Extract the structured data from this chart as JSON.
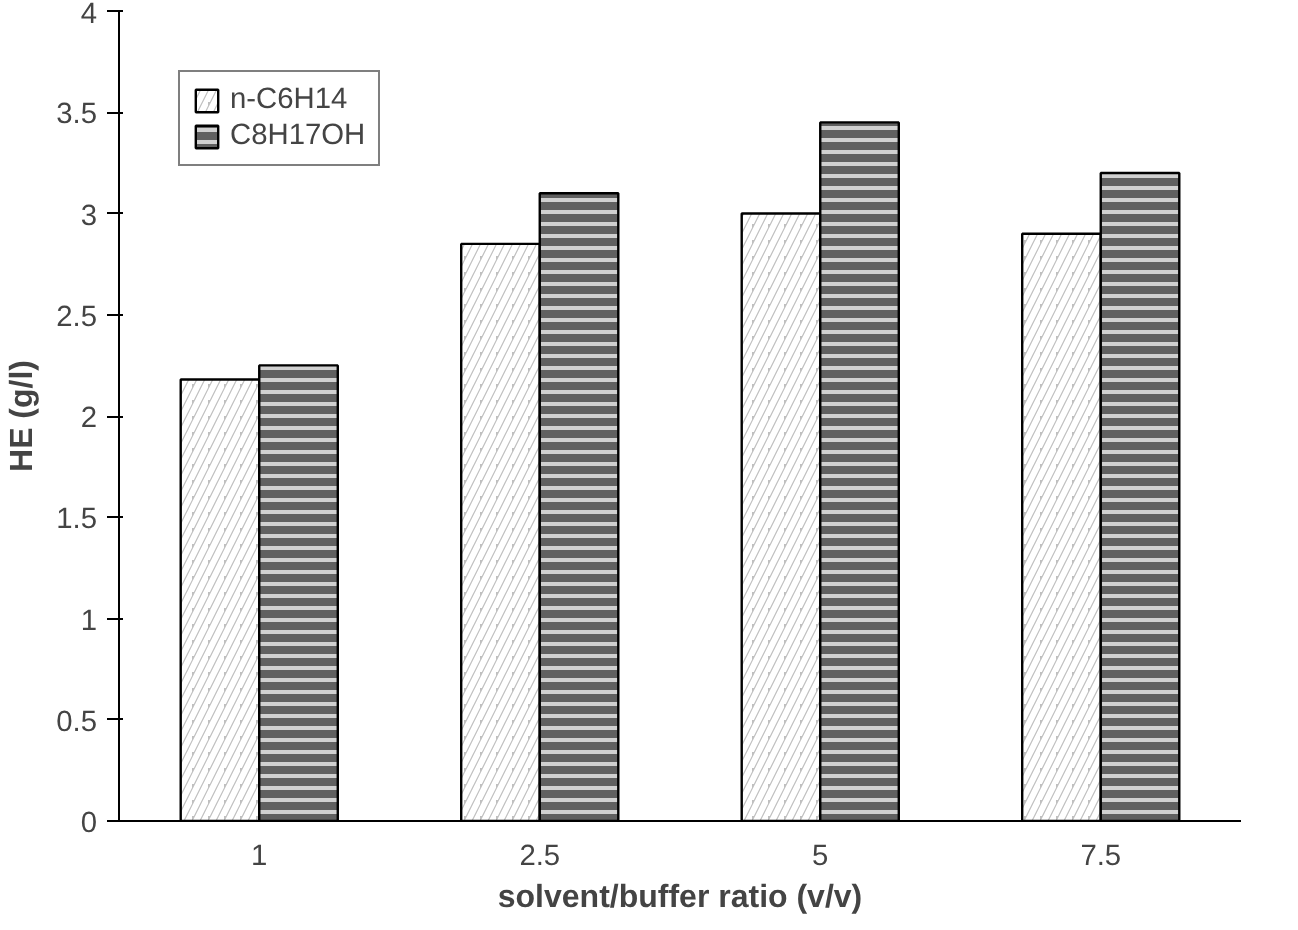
{
  "chart_data": {
    "type": "bar",
    "xlabel": "solvent/buffer ratio (v/v)",
    "ylabel": "HE (g/l)",
    "categories": [
      "1",
      "2.5",
      "5",
      "7.5"
    ],
    "series": [
      {
        "name": "n-C6H14",
        "color": "#c0c0c0",
        "values": [
          2.18,
          2.85,
          3.0,
          2.9
        ]
      },
      {
        "name": "C8H17OH",
        "color": "#606060",
        "values": [
          2.25,
          3.1,
          3.45,
          3.2
        ]
      }
    ],
    "ylim": [
      0,
      4
    ],
    "yticks": [
      0,
      0.5,
      1,
      1.5,
      2,
      2.5,
      3,
      3.5,
      4
    ],
    "grid": false,
    "legend": "top left"
  }
}
